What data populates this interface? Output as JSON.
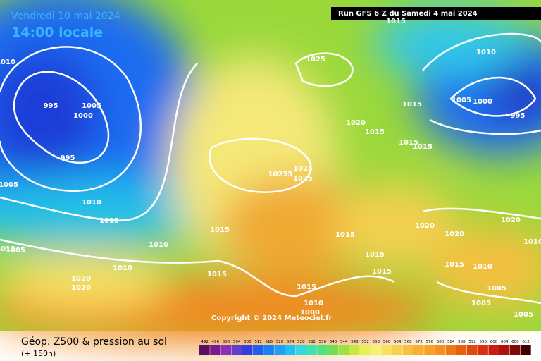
{
  "header": {
    "valid_date": "Vendredi 10 mai 2024",
    "valid_time": "14:00 locale",
    "run": "Run GFS 6 Z du Samedi 4 mai 2024"
  },
  "copyright": "Copyright © 2024 Meteociel.fr",
  "footer": {
    "title": "Géop. Z500 & pression au sol",
    "lead": "(+ 150h)"
  },
  "isobar_labels": [
    "1010",
    "995",
    "1005",
    "1000",
    "995",
    "1005",
    "1010",
    "1015",
    "1010",
    "1010",
    "1020",
    "1020",
    "1010",
    "1005",
    "1025",
    "1015",
    "1020",
    "1015",
    "1015",
    "1010",
    "1005",
    "1000",
    "995",
    "1015",
    "1015",
    "10255",
    "1025",
    "1025",
    "1015",
    "1015",
    "1020",
    "1020",
    "1020",
    "1015",
    "1015",
    "1015",
    "1010",
    "1015",
    "1015",
    "1010",
    "1000",
    "1005",
    "1005",
    "1005",
    "1010"
  ],
  "color_scale": {
    "labels": [
      492,
      496,
      500,
      504,
      508,
      512,
      516,
      520,
      524,
      528,
      532,
      536,
      540,
      544,
      548,
      552,
      556,
      560,
      564,
      568,
      572,
      576,
      580,
      584,
      588,
      592,
      596,
      600,
      604,
      608,
      612
    ],
    "colors": [
      "#5a1060",
      "#7a1a90",
      "#8a30b8",
      "#6040d0",
      "#3040e0",
      "#2060f0",
      "#1a80f8",
      "#20a0f8",
      "#20c0f0",
      "#30d8e0",
      "#40e0b0",
      "#50e080",
      "#70e050",
      "#a0e040",
      "#c8e840",
      "#e8f050",
      "#f8f070",
      "#f8e060",
      "#f8d050",
      "#f8c040",
      "#f8b030",
      "#f8a028",
      "#f89020",
      "#f07818",
      "#e86010",
      "#e04810",
      "#d83010",
      "#c82010",
      "#b01010",
      "#800808",
      "#400000"
    ]
  }
}
